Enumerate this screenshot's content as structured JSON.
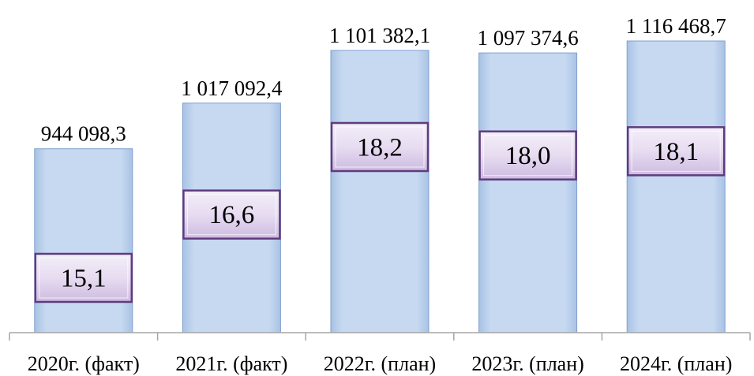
{
  "chart_data": {
    "type": "bar",
    "categories": [
      "2020г. (факт)",
      "2021г. (факт)",
      "2022г. (план)",
      "2023г. (план)",
      "2024г. (план)"
    ],
    "values": [
      944098.3,
      1017092.4,
      1101382.1,
      1097374.6,
      1116468.7
    ],
    "value_labels": [
      "944 098,3",
      "1 017 092,4",
      "1 101 382,1",
      "1 097 374,6",
      "1 116 468,7"
    ],
    "inner_values": [
      15.1,
      16.6,
      18.2,
      18.0,
      18.1
    ],
    "inner_labels": [
      "15,1",
      "16,6",
      "18,2",
      "18,0",
      "18,1"
    ],
    "title": "",
    "xlabel": "",
    "ylabel": "",
    "ylim": [
      650000,
      1150000
    ],
    "grid": false,
    "colors": {
      "bar_fill": "#c6d9f1",
      "bar_edge": "#7f9fcf",
      "box_fill": "#e7dcf1",
      "box_edge": "#5f3b7e",
      "axis": "#a6a6a6"
    }
  }
}
